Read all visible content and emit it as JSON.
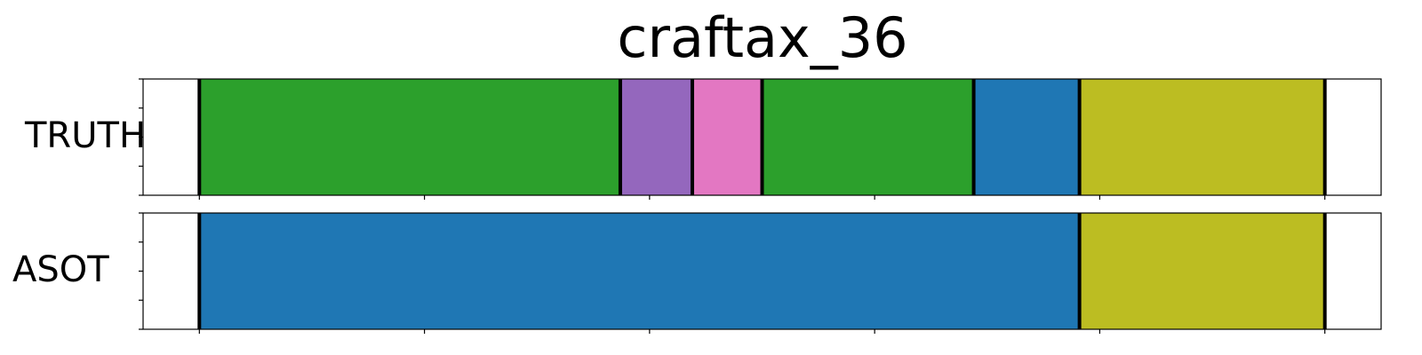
{
  "chart_data": {
    "type": "segmentation",
    "title": "craftax_36",
    "xlim": [
      0,
      5.5
    ],
    "rows": [
      {
        "label": "TRUTH",
        "segments": [
          {
            "start": 0.25,
            "end": 2.12,
            "color": "#2ca02c"
          },
          {
            "start": 2.12,
            "end": 2.44,
            "color": "#9467bd"
          },
          {
            "start": 2.44,
            "end": 2.75,
            "color": "#e377c2"
          },
          {
            "start": 2.75,
            "end": 3.69,
            "color": "#2ca02c"
          },
          {
            "start": 3.69,
            "end": 4.16,
            "color": "#1f77b4"
          },
          {
            "start": 4.16,
            "end": 5.25,
            "color": "#bcbd22"
          }
        ]
      },
      {
        "label": "ASOT",
        "segments": [
          {
            "start": 0.25,
            "end": 4.16,
            "color": "#1f77b4"
          },
          {
            "start": 4.16,
            "end": 5.25,
            "color": "#bcbd22"
          }
        ]
      }
    ],
    "x_ticks": [
      0.25,
      1.25,
      2.25,
      3.25,
      4.25,
      5.25
    ],
    "show_tick_labels": false,
    "grid": false,
    "legend": "none"
  }
}
